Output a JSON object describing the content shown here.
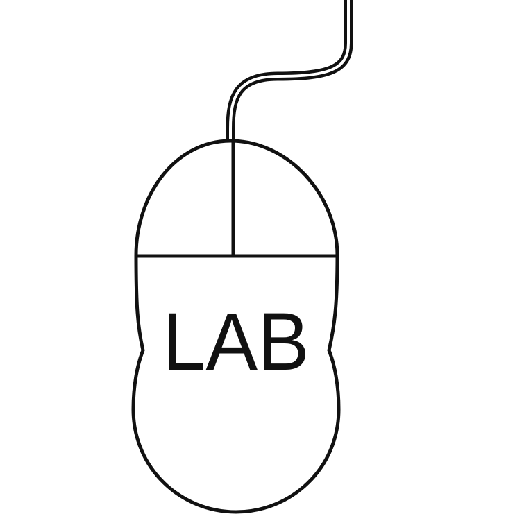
{
  "logo": {
    "label": "LAB",
    "icon": "computer-mouse-icon",
    "cable_icon": "mouse-cable-icon"
  },
  "colors": {
    "background": "#ffffff",
    "stroke": "#111111",
    "text": "#111111"
  }
}
